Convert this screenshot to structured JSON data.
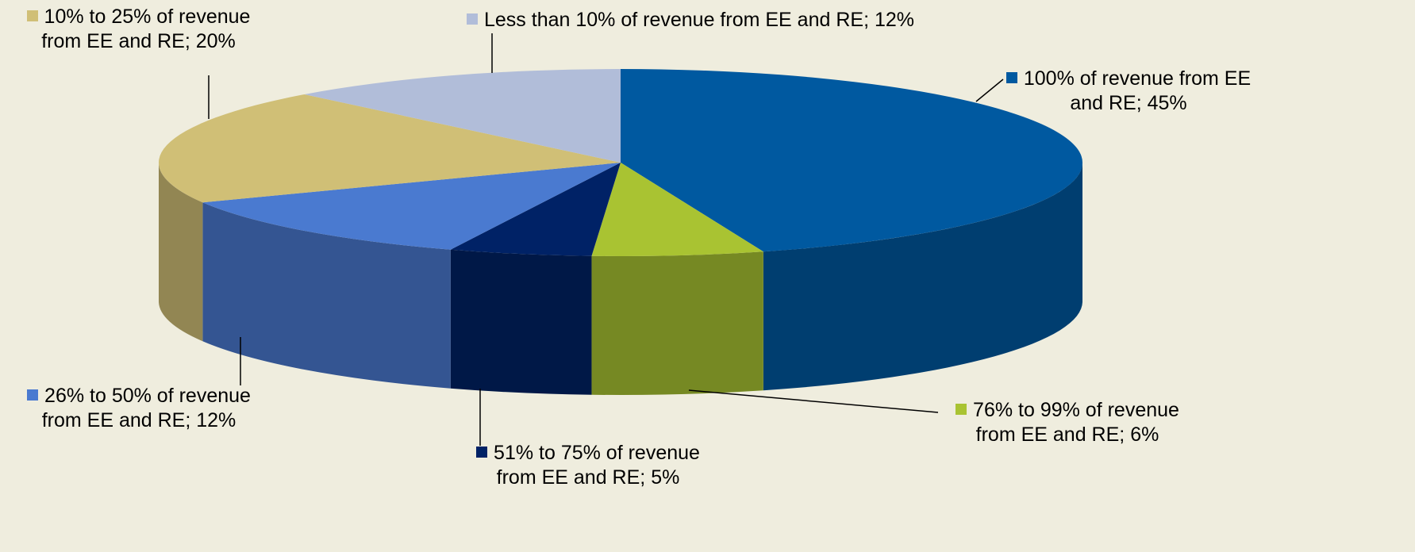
{
  "chart_data": {
    "type": "pie3d",
    "categories": [
      "100% of revenue from EE and RE",
      "76% to 99% of revenue from EE and RE",
      "51% to 75% of revenue from EE and RE",
      "26% to 50% of revenue from EE and RE",
      "10% to 25% of revenue from EE and RE",
      "Less than 10% of revenue from EE and RE"
    ],
    "values": [
      45,
      6,
      5,
      12,
      20,
      12
    ],
    "value_labels": [
      "45%",
      "6%",
      "5%",
      "12%",
      "20%",
      "12%"
    ],
    "label_separator": "; ",
    "colors": [
      "#0059a0",
      "#a9c332",
      "#002266",
      "#4a7ad0",
      "#d0bf76",
      "#b1bdd9"
    ]
  }
}
